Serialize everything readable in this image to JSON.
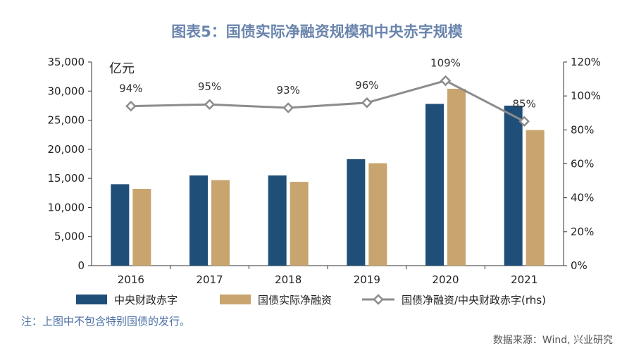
{
  "chart_data": {
    "type": "bar",
    "title": "图表5：国债实际净融资规模和中央赤字规模",
    "y_unit": "亿元",
    "categories": [
      "2016",
      "2017",
      "2018",
      "2019",
      "2020",
      "2021"
    ],
    "series": [
      {
        "name": "中央财政赤字",
        "type": "bar",
        "axis": "left",
        "color": "#1f4e79",
        "values": [
          14000,
          15500,
          15500,
          18300,
          27800,
          27500
        ]
      },
      {
        "name": "国债实际净融资",
        "type": "bar",
        "axis": "left",
        "color": "#c8a46e",
        "values": [
          13200,
          14700,
          14400,
          17600,
          30400,
          23300
        ]
      },
      {
        "name": "国债净融资/中央财政赤字(rhs)",
        "type": "line",
        "axis": "right",
        "color": "#8c8c8c",
        "values": [
          0.94,
          0.95,
          0.93,
          0.96,
          1.09,
          0.85
        ],
        "labels": [
          "94%",
          "95%",
          "93%",
          "96%",
          "109%",
          "85%"
        ]
      }
    ],
    "y_left": {
      "min": 0,
      "max": 35000,
      "ticks": [
        "0",
        "5,000",
        "10,000",
        "15,000",
        "20,000",
        "25,000",
        "30,000",
        "35,000"
      ]
    },
    "y_right": {
      "min": 0,
      "max": 1.2,
      "ticks": [
        "0%",
        "20%",
        "40%",
        "60%",
        "80%",
        "100%",
        "120%"
      ]
    },
    "legend_position": "bottom"
  },
  "colors": {
    "title": "#6a85ad",
    "note": "#4a6fa5",
    "axis": "#333333"
  },
  "note": "注：上图中不包含特别国债的发行。",
  "source": "数据来源：Wind, 兴业研究"
}
